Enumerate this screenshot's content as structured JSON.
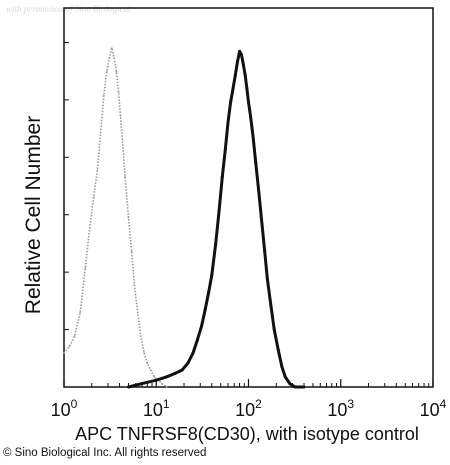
{
  "watermark_text": "with permission of Sino Biological",
  "copyright": "© Sino Biological Inc. All rights reserved",
  "chart_data": {
    "type": "line",
    "xlabel": "APC TNFRSF8(CD30), with isotype control",
    "ylabel": "Relative Cell Number",
    "xscale": "log",
    "xlim": [
      1,
      10000
    ],
    "ylim": [
      0,
      100
    ],
    "x_ticks": [
      {
        "value": 1,
        "base": "10",
        "exp": "0"
      },
      {
        "value": 10,
        "base": "10",
        "exp": "1"
      },
      {
        "value": 100,
        "base": "10",
        "exp": "2"
      },
      {
        "value": 1000,
        "base": "10",
        "exp": "3"
      },
      {
        "value": 10000,
        "base": "10",
        "exp": "4"
      }
    ],
    "y_tick_labels_shown": false,
    "grid": false,
    "legend": "none",
    "series": [
      {
        "style": "dotted",
        "color": "#9a9a9a",
        "x": [
          1.0,
          1.15,
          1.3,
          1.5,
          1.7,
          1.9,
          2.1,
          2.3,
          2.5,
          2.7,
          2.9,
          3.1,
          3.3,
          3.5,
          3.7,
          3.9,
          4.1,
          4.3,
          4.6,
          5.0,
          5.4,
          5.8,
          6.3,
          6.8,
          7.4,
          8.0,
          8.7,
          9.5,
          10.5,
          11.5,
          13.0
        ],
        "y": [
          10,
          12,
          15,
          22,
          35,
          47,
          56,
          64,
          75,
          86,
          93,
          97,
          100,
          97,
          93,
          87,
          80,
          73,
          62,
          50,
          40,
          30,
          22,
          15,
          10,
          7,
          5,
          3,
          2,
          1,
          0
        ]
      },
      {
        "style": "solid",
        "color": "#111111",
        "x": [
          5.0,
          7.0,
          10.0,
          13.0,
          16.0,
          19.0,
          22.0,
          25.0,
          28.0,
          31.0,
          34.0,
          37.0,
          40.0,
          44.0,
          48.0,
          52.0,
          56.0,
          60.0,
          64.0,
          68.0,
          72.0,
          76.0,
          80.0,
          84.0,
          88.0,
          92.0,
          96.0,
          100.0,
          105.0,
          112.0,
          120.0,
          130.0,
          140.0,
          150.0,
          160.0,
          175.0,
          190.0,
          210.0,
          230.0,
          250.0,
          280.0,
          320.0,
          400.0
        ],
        "y": [
          0,
          1,
          2,
          3,
          4,
          5,
          7,
          10,
          14,
          18,
          23,
          28,
          33,
          42,
          52,
          62,
          70,
          78,
          84,
          88,
          92,
          96,
          99,
          98,
          95,
          92,
          88,
          84,
          80,
          74,
          66,
          57,
          48,
          40,
          32,
          24,
          17,
          11,
          6,
          3,
          1,
          0,
          0
        ]
      }
    ]
  }
}
